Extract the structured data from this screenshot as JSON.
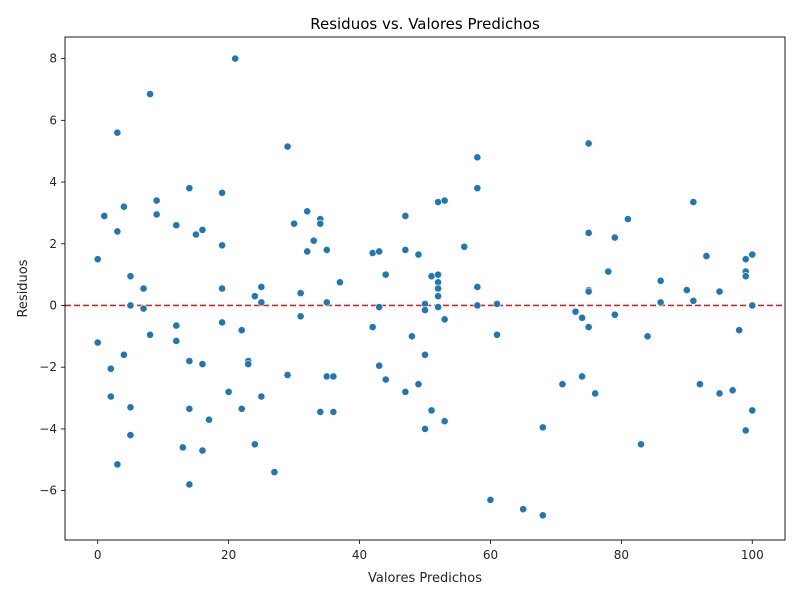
{
  "chart_data": {
    "type": "scatter",
    "title": "Residuos vs. Valores Predichos",
    "xlabel": "Valores Predichos",
    "ylabel": "Residuos",
    "xlim": [
      -5,
      105
    ],
    "ylim": [
      -7.6,
      8.7
    ],
    "xticks": [
      0,
      20,
      40,
      60,
      80,
      100
    ],
    "yticks": [
      -6,
      -4,
      -2,
      0,
      2,
      4,
      6,
      8
    ],
    "grid": false,
    "point_color": "#1f77b4",
    "reference_line": {
      "y": 0,
      "color": "#d62728",
      "style": "dashed"
    },
    "points": [
      {
        "x": 0,
        "y": 1.5
      },
      {
        "x": 0,
        "y": -1.2
      },
      {
        "x": 1,
        "y": 2.9
      },
      {
        "x": 2,
        "y": -2.05
      },
      {
        "x": 2,
        "y": -2.95
      },
      {
        "x": 3,
        "y": 5.6
      },
      {
        "x": 3,
        "y": 2.4
      },
      {
        "x": 3,
        "y": -5.15
      },
      {
        "x": 4,
        "y": 3.2
      },
      {
        "x": 4,
        "y": -1.6
      },
      {
        "x": 5,
        "y": 0.95
      },
      {
        "x": 5,
        "y": 0.0
      },
      {
        "x": 5,
        "y": -3.3
      },
      {
        "x": 5,
        "y": -4.2
      },
      {
        "x": 7,
        "y": 0.55
      },
      {
        "x": 7,
        "y": -0.1
      },
      {
        "x": 8,
        "y": 6.85
      },
      {
        "x": 8,
        "y": -0.95
      },
      {
        "x": 9,
        "y": 3.4
      },
      {
        "x": 9,
        "y": 2.95
      },
      {
        "x": 12,
        "y": 2.6
      },
      {
        "x": 12,
        "y": -0.65
      },
      {
        "x": 12,
        "y": -1.15
      },
      {
        "x": 13,
        "y": -4.6
      },
      {
        "x": 14,
        "y": 3.8
      },
      {
        "x": 14,
        "y": -1.8
      },
      {
        "x": 14,
        "y": -3.35
      },
      {
        "x": 14,
        "y": -5.8
      },
      {
        "x": 15,
        "y": 2.3
      },
      {
        "x": 16,
        "y": 2.45
      },
      {
        "x": 16,
        "y": -1.9
      },
      {
        "x": 16,
        "y": -4.7
      },
      {
        "x": 17,
        "y": -3.7
      },
      {
        "x": 19,
        "y": 3.65
      },
      {
        "x": 19,
        "y": 1.95
      },
      {
        "x": 19,
        "y": 0.55
      },
      {
        "x": 19,
        "y": -0.55
      },
      {
        "x": 20,
        "y": -2.8
      },
      {
        "x": 21,
        "y": 8.0
      },
      {
        "x": 22,
        "y": -0.8
      },
      {
        "x": 22,
        "y": -3.35
      },
      {
        "x": 23,
        "y": -1.8
      },
      {
        "x": 23,
        "y": -1.9
      },
      {
        "x": 24,
        "y": 0.3
      },
      {
        "x": 24,
        "y": -4.5
      },
      {
        "x": 25,
        "y": 0.6
      },
      {
        "x": 25,
        "y": 0.1
      },
      {
        "x": 25,
        "y": -2.95
      },
      {
        "x": 27,
        "y": -5.4
      },
      {
        "x": 29,
        "y": 5.15
      },
      {
        "x": 29,
        "y": -2.25
      },
      {
        "x": 30,
        "y": 2.65
      },
      {
        "x": 31,
        "y": 0.4
      },
      {
        "x": 31,
        "y": -0.35
      },
      {
        "x": 32,
        "y": 3.05
      },
      {
        "x": 32,
        "y": 1.75
      },
      {
        "x": 33,
        "y": 2.1
      },
      {
        "x": 34,
        "y": 2.8
      },
      {
        "x": 34,
        "y": 2.65
      },
      {
        "x": 34,
        "y": -3.45
      },
      {
        "x": 35,
        "y": 1.8
      },
      {
        "x": 35,
        "y": 0.1
      },
      {
        "x": 35,
        "y": -2.3
      },
      {
        "x": 36,
        "y": -2.3
      },
      {
        "x": 36,
        "y": -3.45
      },
      {
        "x": 37,
        "y": 0.75
      },
      {
        "x": 42,
        "y": 1.7
      },
      {
        "x": 42,
        "y": -0.7
      },
      {
        "x": 43,
        "y": 1.75
      },
      {
        "x": 43,
        "y": -0.05
      },
      {
        "x": 43,
        "y": -1.95
      },
      {
        "x": 44,
        "y": 1.0
      },
      {
        "x": 44,
        "y": -2.4
      },
      {
        "x": 47,
        "y": 2.9
      },
      {
        "x": 47,
        "y": 1.8
      },
      {
        "x": 47,
        "y": -2.8
      },
      {
        "x": 48,
        "y": -1.0
      },
      {
        "x": 49,
        "y": 1.65
      },
      {
        "x": 49,
        "y": -2.55
      },
      {
        "x": 50,
        "y": 0.05
      },
      {
        "x": 50,
        "y": -0.15
      },
      {
        "x": 50,
        "y": -1.6
      },
      {
        "x": 50,
        "y": -4.0
      },
      {
        "x": 51,
        "y": 0.95
      },
      {
        "x": 51,
        "y": -3.4
      },
      {
        "x": 52,
        "y": 3.35
      },
      {
        "x": 52,
        "y": 1.0
      },
      {
        "x": 52,
        "y": 0.75
      },
      {
        "x": 52,
        "y": 0.55
      },
      {
        "x": 52,
        "y": 0.3
      },
      {
        "x": 52,
        "y": -0.05
      },
      {
        "x": 53,
        "y": 3.4
      },
      {
        "x": 53,
        "y": -0.45
      },
      {
        "x": 53,
        "y": -3.75
      },
      {
        "x": 56,
        "y": 1.9
      },
      {
        "x": 58,
        "y": 4.8
      },
      {
        "x": 58,
        "y": 3.8
      },
      {
        "x": 58,
        "y": 0.6
      },
      {
        "x": 58,
        "y": 0.0
      },
      {
        "x": 60,
        "y": -6.3
      },
      {
        "x": 61,
        "y": 0.05
      },
      {
        "x": 61,
        "y": -0.95
      },
      {
        "x": 65,
        "y": -6.6
      },
      {
        "x": 68,
        "y": -3.95
      },
      {
        "x": 68,
        "y": -6.8
      },
      {
        "x": 71,
        "y": -2.55
      },
      {
        "x": 73,
        "y": -0.2
      },
      {
        "x": 74,
        "y": -0.4
      },
      {
        "x": 74,
        "y": -2.3
      },
      {
        "x": 75,
        "y": 5.25
      },
      {
        "x": 75,
        "y": 2.35
      },
      {
        "x": 75,
        "y": 0.5
      },
      {
        "x": 75,
        "y": 0.45
      },
      {
        "x": 75,
        "y": -0.7
      },
      {
        "x": 76,
        "y": -2.85
      },
      {
        "x": 78,
        "y": 1.1
      },
      {
        "x": 79,
        "y": 2.2
      },
      {
        "x": 79,
        "y": -0.3
      },
      {
        "x": 81,
        "y": 2.8
      },
      {
        "x": 83,
        "y": -4.5
      },
      {
        "x": 84,
        "y": -1.0
      },
      {
        "x": 86,
        "y": 0.8
      },
      {
        "x": 86,
        "y": 0.1
      },
      {
        "x": 90,
        "y": 0.5
      },
      {
        "x": 91,
        "y": 3.35
      },
      {
        "x": 91,
        "y": 0.15
      },
      {
        "x": 92,
        "y": -2.55
      },
      {
        "x": 93,
        "y": 1.6
      },
      {
        "x": 95,
        "y": 0.45
      },
      {
        "x": 95,
        "y": -2.85
      },
      {
        "x": 97,
        "y": -2.75
      },
      {
        "x": 98,
        "y": -0.8
      },
      {
        "x": 99,
        "y": 1.5
      },
      {
        "x": 99,
        "y": 1.1
      },
      {
        "x": 99,
        "y": 0.95
      },
      {
        "x": 99,
        "y": -4.05
      },
      {
        "x": 100,
        "y": 1.65
      },
      {
        "x": 100,
        "y": 0.0
      },
      {
        "x": 100,
        "y": -3.4
      }
    ]
  }
}
